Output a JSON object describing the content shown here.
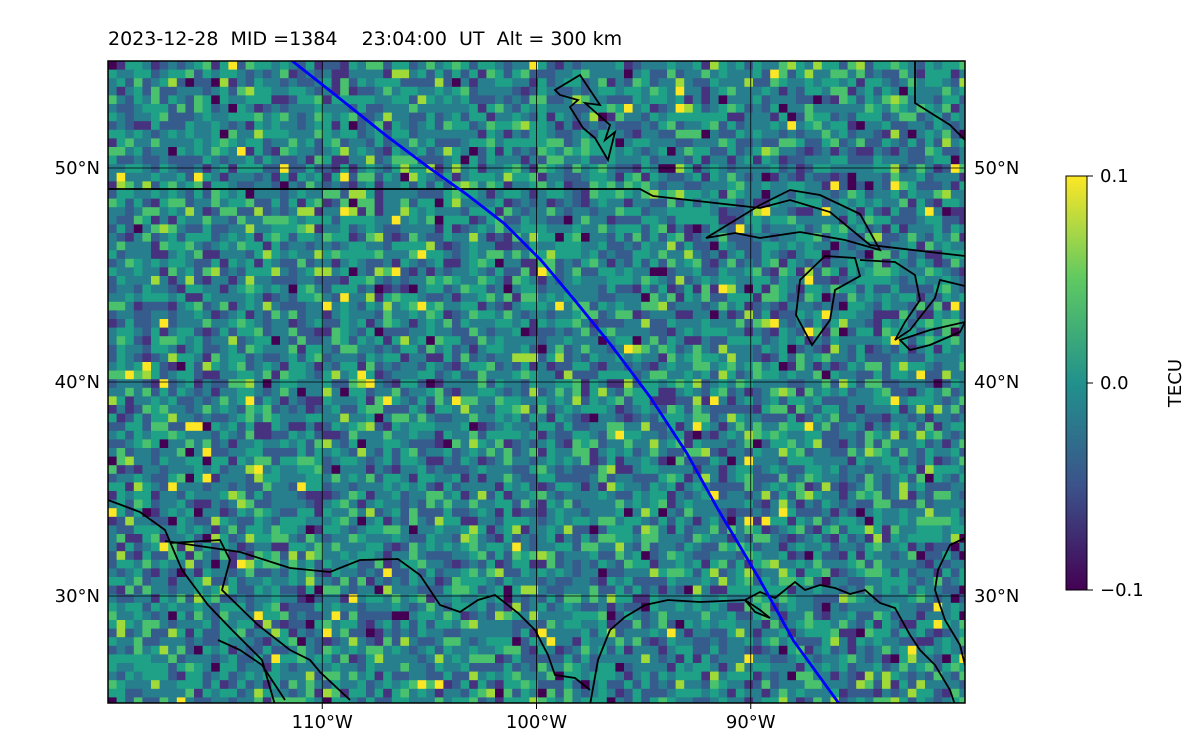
{
  "title": "2023-12-28  MID =1384    23:04:00  UT  Alt = 300 km",
  "map": {
    "lon_range": [
      -120,
      -80
    ],
    "lat_range": [
      25,
      55
    ],
    "lon_ticks": [
      {
        "value": -110,
        "label": "110°W"
      },
      {
        "value": -100,
        "label": "100°W"
      },
      {
        "value": -90,
        "label": "90°W"
      }
    ],
    "lat_ticks": [
      {
        "value": 30,
        "label": "30°N"
      },
      {
        "value": 40,
        "label": "40°N"
      },
      {
        "value": 50,
        "label": "50°N"
      }
    ],
    "gridlines": true,
    "track_color": "#0000ff",
    "track": [
      [
        -111.4,
        55.0
      ],
      [
        -109.5,
        53.5
      ],
      [
        -107.0,
        51.5
      ],
      [
        -105.0,
        50.0
      ],
      [
        -103.3,
        48.8
      ],
      [
        -101.5,
        47.4
      ],
      [
        -99.8,
        45.7
      ],
      [
        -98.2,
        43.8
      ],
      [
        -96.5,
        41.7
      ],
      [
        -94.7,
        39.3
      ],
      [
        -93.0,
        36.7
      ],
      [
        -91.5,
        34.0
      ],
      [
        -89.6,
        30.8
      ],
      [
        -88.0,
        27.9
      ],
      [
        -85.9,
        25.0
      ]
    ]
  },
  "colorbar": {
    "label": "TECU",
    "colormap": "viridis",
    "min": -0.1,
    "max": 0.1,
    "ticks": [
      {
        "value": 0.1,
        "label": "0.1"
      },
      {
        "value": 0.0,
        "label": "0.0"
      },
      {
        "value": -0.1,
        "label": "−0.1"
      }
    ]
  }
}
